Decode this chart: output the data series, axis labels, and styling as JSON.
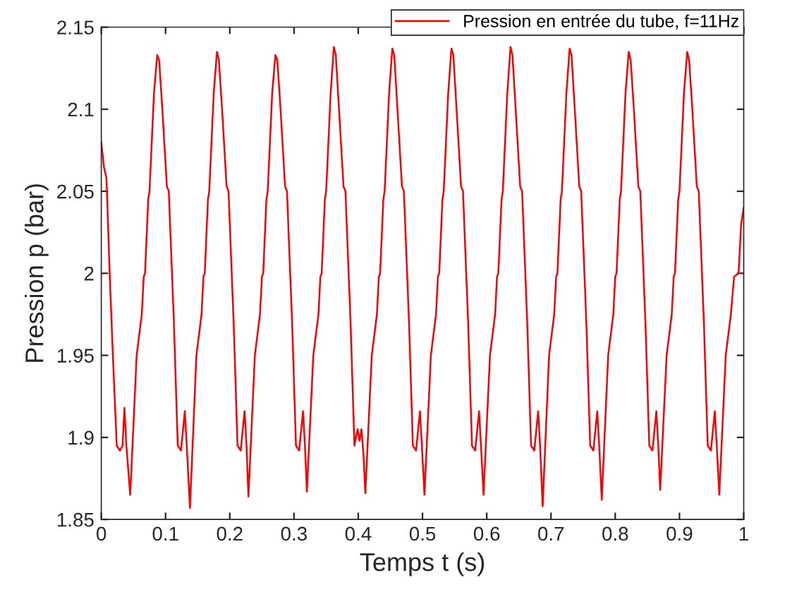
{
  "chart_data": {
    "type": "line",
    "xlabel": "Temps t (s)",
    "ylabel": "Pression p (bar)",
    "legend": "top right",
    "grid": false,
    "marker": "none",
    "line_style": "solid",
    "xlim": [
      0,
      1
    ],
    "ylim": [
      1.85,
      2.15
    ],
    "xticks": [
      0,
      0.1,
      0.2,
      0.3,
      0.4,
      0.5,
      0.6,
      0.7,
      0.8,
      0.9,
      1
    ],
    "yticks": [
      1.85,
      1.9,
      1.95,
      2,
      2.05,
      2.1,
      2.15
    ],
    "series": [
      {
        "name": "Pression en entrée du tube, f=11Hz",
        "color": "#ff0000",
        "x": [
          0,
          0.004,
          0.008,
          0.013,
          0.018,
          0.024,
          0.029,
          0.033,
          0.036,
          0.039,
          0.045,
          0.055,
          0.063,
          0.066,
          0.068,
          0.073,
          0.075,
          0.082,
          0.087,
          0.09,
          0.095,
          0.102,
          0.105,
          0.113,
          0.119,
          0.124,
          0.13,
          0.133,
          0.138,
          0.148,
          0.156,
          0.159,
          0.161,
          0.166,
          0.168,
          0.175,
          0.18,
          0.183,
          0.188,
          0.195,
          0.198,
          0.206,
          0.212,
          0.217,
          0.223,
          0.226,
          0.229,
          0.239,
          0.247,
          0.25,
          0.252,
          0.257,
          0.259,
          0.266,
          0.271,
          0.274,
          0.279,
          0.286,
          0.289,
          0.297,
          0.303,
          0.308,
          0.314,
          0.317,
          0.32,
          0.33,
          0.338,
          0.341,
          0.343,
          0.348,
          0.35,
          0.357,
          0.362,
          0.365,
          0.37,
          0.377,
          0.38,
          0.388,
          0.394,
          0.399,
          0.402,
          0.405,
          0.408,
          0.411,
          0.421,
          0.429,
          0.432,
          0.434,
          0.439,
          0.441,
          0.448,
          0.453,
          0.456,
          0.461,
          0.468,
          0.471,
          0.479,
          0.485,
          0.49,
          0.496,
          0.499,
          0.503,
          0.513,
          0.521,
          0.524,
          0.526,
          0.531,
          0.533,
          0.54,
          0.545,
          0.548,
          0.553,
          0.56,
          0.563,
          0.571,
          0.577,
          0.582,
          0.588,
          0.591,
          0.595,
          0.605,
          0.613,
          0.616,
          0.618,
          0.623,
          0.625,
          0.632,
          0.637,
          0.64,
          0.645,
          0.652,
          0.655,
          0.663,
          0.669,
          0.674,
          0.68,
          0.683,
          0.687,
          0.697,
          0.705,
          0.708,
          0.71,
          0.715,
          0.717,
          0.724,
          0.729,
          0.732,
          0.737,
          0.744,
          0.747,
          0.755,
          0.761,
          0.766,
          0.772,
          0.775,
          0.779,
          0.789,
          0.797,
          0.8,
          0.802,
          0.807,
          0.809,
          0.816,
          0.821,
          0.824,
          0.829,
          0.836,
          0.839,
          0.847,
          0.853,
          0.858,
          0.864,
          0.867,
          0.87,
          0.88,
          0.888,
          0.891,
          0.893,
          0.898,
          0.9,
          0.907,
          0.912,
          0.915,
          0.92,
          0.927,
          0.93,
          0.938,
          0.944,
          0.949,
          0.955,
          0.958,
          0.962,
          0.972,
          0.98,
          0.985,
          0.992,
          0.996,
          1.0
        ],
        "values": [
          2.08,
          2.065,
          2.058,
          2.0,
          1.95,
          1.895,
          1.892,
          1.895,
          1.918,
          1.895,
          1.865,
          1.95,
          1.975,
          1.998,
          2.0,
          2.045,
          2.05,
          2.11,
          2.133,
          2.13,
          2.1,
          2.053,
          2.05,
          1.97,
          1.895,
          1.892,
          1.916,
          1.895,
          1.857,
          1.95,
          1.975,
          1.998,
          2.0,
          2.045,
          2.05,
          2.11,
          2.135,
          2.13,
          2.1,
          2.053,
          2.05,
          1.97,
          1.895,
          1.892,
          1.916,
          1.895,
          1.864,
          1.95,
          1.975,
          1.998,
          2.0,
          2.045,
          2.05,
          2.11,
          2.133,
          2.13,
          2.1,
          2.053,
          2.05,
          1.97,
          1.895,
          1.892,
          1.916,
          1.895,
          1.867,
          1.95,
          1.975,
          1.998,
          2.0,
          2.045,
          2.05,
          2.11,
          2.138,
          2.133,
          2.1,
          2.053,
          2.05,
          1.97,
          1.895,
          1.905,
          1.898,
          1.905,
          1.89,
          1.866,
          1.95,
          1.975,
          1.998,
          2.0,
          2.045,
          2.05,
          2.11,
          2.137,
          2.133,
          2.1,
          2.053,
          2.05,
          1.97,
          1.895,
          1.892,
          1.916,
          1.895,
          1.865,
          1.95,
          1.975,
          1.998,
          2.0,
          2.045,
          2.05,
          2.11,
          2.137,
          2.133,
          2.1,
          2.053,
          2.05,
          1.97,
          1.895,
          1.892,
          1.916,
          1.895,
          1.865,
          1.95,
          1.975,
          1.998,
          2.0,
          2.045,
          2.05,
          2.11,
          2.138,
          2.133,
          2.1,
          2.053,
          2.05,
          1.97,
          1.895,
          1.892,
          1.916,
          1.895,
          1.858,
          1.95,
          1.975,
          1.998,
          2.0,
          2.045,
          2.05,
          2.11,
          2.137,
          2.133,
          2.1,
          2.053,
          2.05,
          1.97,
          1.895,
          1.892,
          1.916,
          1.895,
          1.862,
          1.95,
          1.975,
          1.998,
          2.0,
          2.045,
          2.05,
          2.11,
          2.135,
          2.13,
          2.1,
          2.053,
          2.05,
          1.97,
          1.895,
          1.892,
          1.916,
          1.895,
          1.868,
          1.95,
          1.975,
          1.998,
          2.0,
          2.045,
          2.05,
          2.11,
          2.135,
          2.13,
          2.1,
          2.053,
          2.05,
          1.97,
          1.895,
          1.892,
          1.916,
          1.895,
          1.865,
          1.95,
          1.975,
          1.998,
          2.0,
          2.03,
          2.04
        ]
      }
    ]
  }
}
